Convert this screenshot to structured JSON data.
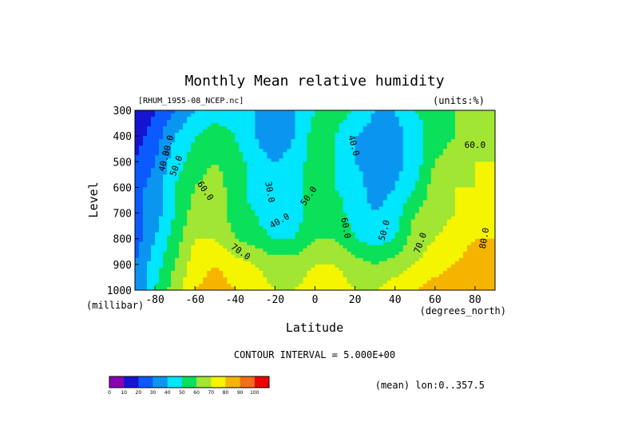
{
  "chart_data": {
    "type": "heatmap",
    "title": "Monthly Mean relative humidity",
    "file_label": "[RHUM_1955-08_NCEP.nc]",
    "units_label": "(units:%)",
    "ylabel": "Level",
    "y_units": "(millibar)",
    "xlabel": "Latitude",
    "x_units": "(degrees_north)",
    "contour_interval_text": "CONTOUR INTERVAL = 5.000E+00",
    "mean_text": "(mean) lon:0..357.5",
    "xlim": [
      -90,
      90
    ],
    "ylim": [
      300,
      1000
    ],
    "x_ticks": [
      -80,
      -60,
      -40,
      -20,
      0,
      20,
      40,
      60,
      80
    ],
    "y_ticks": [
      300,
      400,
      500,
      600,
      700,
      800,
      900,
      1000
    ],
    "x": [
      -90,
      -80,
      -70,
      -60,
      -50,
      -40,
      -30,
      -20,
      -10,
      0,
      10,
      20,
      30,
      40,
      50,
      60,
      70,
      80,
      90
    ],
    "levels": [
      300,
      400,
      500,
      600,
      700,
      800,
      900,
      1000
    ],
    "values": [
      [
        10,
        20,
        30,
        40,
        45,
        45,
        40,
        35,
        40,
        50,
        55,
        50,
        40,
        40,
        50,
        55,
        60,
        60,
        60
      ],
      [
        15,
        25,
        40,
        50,
        55,
        50,
        40,
        30,
        40,
        55,
        50,
        40,
        35,
        35,
        45,
        55,
        60,
        65,
        65
      ],
      [
        20,
        30,
        45,
        55,
        60,
        55,
        45,
        40,
        45,
        55,
        50,
        40,
        35,
        35,
        45,
        60,
        65,
        70,
        70
      ],
      [
        25,
        35,
        50,
        60,
        65,
        55,
        45,
        40,
        45,
        55,
        50,
        45,
        35,
        40,
        50,
        65,
        70,
        70,
        75
      ],
      [
        25,
        35,
        50,
        65,
        65,
        55,
        50,
        40,
        45,
        55,
        55,
        45,
        40,
        45,
        60,
        65,
        70,
        75,
        75
      ],
      [
        25,
        40,
        55,
        70,
        70,
        60,
        55,
        50,
        50,
        60,
        60,
        50,
        45,
        50,
        65,
        70,
        75,
        80,
        80
      ],
      [
        30,
        45,
        60,
        75,
        80,
        75,
        70,
        65,
        65,
        70,
        70,
        65,
        60,
        65,
        70,
        75,
        80,
        85,
        85
      ],
      [
        30,
        50,
        65,
        80,
        85,
        80,
        75,
        70,
        70,
        75,
        75,
        70,
        70,
        75,
        80,
        85,
        90,
        90,
        90
      ]
    ],
    "contour_labels": [
      {
        "text": "30.0",
        "lon": -72,
        "lev": 440,
        "angle": -75
      },
      {
        "text": "40.0",
        "lon": -74,
        "lev": 500,
        "angle": -75
      },
      {
        "text": "50.0",
        "lon": -68,
        "lev": 520,
        "angle": -70
      },
      {
        "text": "60.0",
        "lon": -56,
        "lev": 620,
        "angle": 55
      },
      {
        "text": "70.0",
        "lon": -38,
        "lev": 860,
        "angle": 35
      },
      {
        "text": "30.0",
        "lon": -24,
        "lev": 620,
        "angle": 80
      },
      {
        "text": "40.0",
        "lon": -17,
        "lev": 740,
        "angle": -30
      },
      {
        "text": "50.0",
        "lon": -2,
        "lev": 640,
        "angle": -55
      },
      {
        "text": "40.0",
        "lon": 18,
        "lev": 440,
        "angle": 75
      },
      {
        "text": "60.0",
        "lon": 14,
        "lev": 760,
        "angle": 80
      },
      {
        "text": "50.0",
        "lon": 36,
        "lev": 770,
        "angle": -75
      },
      {
        "text": "70.0",
        "lon": 54,
        "lev": 820,
        "angle": -70
      },
      {
        "text": "60.0",
        "lon": 80,
        "lev": 446,
        "angle": 0
      },
      {
        "text": "80.0",
        "lon": 86,
        "lev": 800,
        "angle": -80
      }
    ],
    "colorbar": {
      "labels": [
        "0",
        "10",
        "20",
        "30",
        "40",
        "50",
        "60",
        "70",
        "80",
        "90",
        "100"
      ],
      "colors": [
        "#8c00b4",
        "#1414d2",
        "#0a5aff",
        "#0a96f0",
        "#00e6ff",
        "#0ae05a",
        "#a0e632",
        "#f5f500",
        "#f5b400",
        "#f56e14",
        "#f00000"
      ]
    },
    "grid": false
  }
}
